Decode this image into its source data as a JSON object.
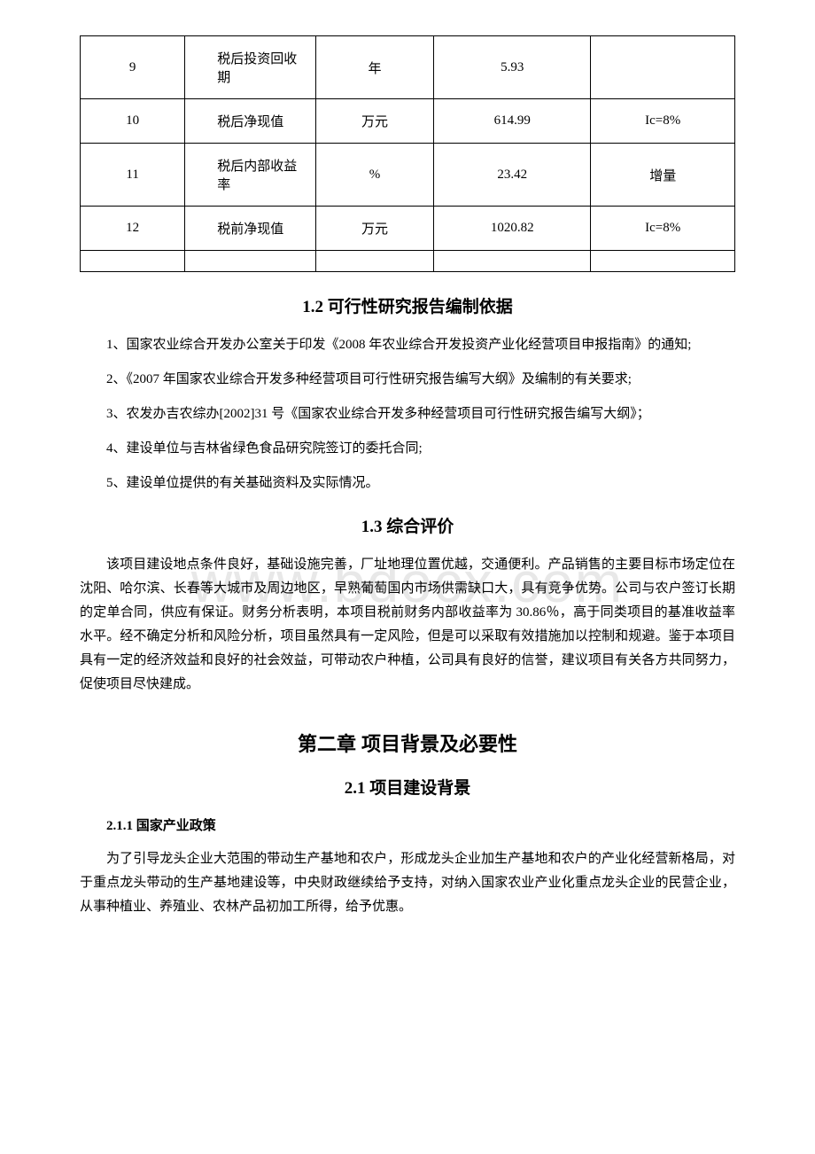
{
  "watermark": "www.bdocx.com",
  "table": {
    "rows": [
      {
        "num": "9",
        "name": "税后投资回收期",
        "unit": "年",
        "value": "5.93",
        "note": ""
      },
      {
        "num": "10",
        "name": "税后净现值",
        "unit": "万元",
        "value": "614.99",
        "note": "Ic=8%"
      },
      {
        "num": "11",
        "name": "税后内部收益率",
        "unit": "%",
        "value": "23.42",
        "note": "增量"
      },
      {
        "num": "12",
        "name": "税前净现值",
        "unit": "万元",
        "value": "1020.82",
        "note": "Ic=8%"
      }
    ]
  },
  "section_1_2": {
    "title": "1.2 可行性研究报告编制依据",
    "items": [
      "1、国家农业综合开发办公室关于印发《2008 年农业综合开发投资产业化经营项目申报指南》的通知;",
      "2、《2007 年国家农业综合开发多种经营项目可行性研究报告编写大纲》及编制的有关要求;",
      "3、农发办吉农综办[2002]31 号《国家农业综合开发多种经营项目可行性研究报告编写大纲》；",
      "4、建设单位与吉林省绿色食品研究院签订的委托合同;",
      "5、建设单位提供的有关基础资料及实际情况。"
    ]
  },
  "section_1_3": {
    "title": "1.3 综合评价",
    "body": "该项目建设地点条件良好，基础设施完善，厂址地理位置优越，交通便利。产品销售的主要目标市场定位在沈阳、哈尔滨、长春等大城市及周边地区，早熟葡萄国内市场供需缺口大，具有竞争优势。公司与农户签订长期的定单合同，供应有保证。财务分析表明，本项目税前财务内部收益率为 30.86％，高于同类项目的基准收益率水平。经不确定分析和风险分析，项目虽然具有一定风险，但是可以采取有效措施加以控制和规避。鉴于本项目具有一定的经济效益和良好的社会效益，可带动农户种植，公司具有良好的信誉，建议项目有关各方共同努力，促使项目尽快建成。"
  },
  "chapter_2": {
    "title": "第二章 项目背景及必要性"
  },
  "section_2_1": {
    "title": "2.1 项目建设背景",
    "sub_2_1_1": {
      "title": "2.1.1 国家产业政策",
      "body": "为了引导龙头企业大范围的带动生产基地和农户，形成龙头企业加生产基地和农户的产业化经营新格局，对于重点龙头带动的生产基地建设等，中央财政继续给予支持，对纳入国家农业产业化重点龙头企业的民营企业，从事种植业、养殖业、农林产品初加工所得，给予优惠。"
    }
  }
}
